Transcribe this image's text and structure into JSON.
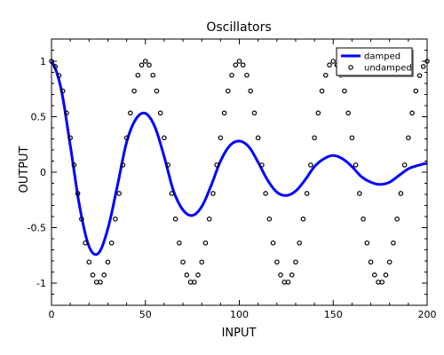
{
  "chart_data": {
    "type": "line",
    "title": "Oscillators",
    "xlabel": "INPUT",
    "ylabel": "OUTPUT",
    "xlim": [
      0,
      200
    ],
    "ylim": [
      -1.2,
      1.2
    ],
    "x_ticks": [
      0,
      50,
      100,
      150,
      200
    ],
    "y_ticks": [
      -1,
      -0.5,
      0,
      0.5,
      1
    ],
    "x_tick_labels": [
      "0",
      "50",
      "100",
      "150",
      "200"
    ],
    "y_tick_labels": [
      "-1",
      "-0.5",
      "0",
      "0.5",
      "1"
    ],
    "grid": false,
    "legend_position": "top-right",
    "series": [
      {
        "name": "damped",
        "style": "line",
        "color": "#0000ff",
        "x": [
          0,
          5,
          10,
          15,
          20,
          25,
          30,
          35,
          40,
          45,
          50,
          55,
          60,
          65,
          70,
          75,
          80,
          85,
          90,
          95,
          100,
          105,
          110,
          115,
          120,
          125,
          130,
          135,
          140,
          145,
          150,
          155,
          160,
          165,
          170,
          175,
          180,
          185,
          190,
          195,
          200
        ],
        "y": [
          1.0,
          0.76,
          0.24,
          -0.31,
          -0.67,
          -0.73,
          -0.51,
          -0.13,
          0.27,
          0.48,
          0.53,
          0.41,
          0.14,
          -0.17,
          -0.34,
          -0.39,
          -0.31,
          -0.12,
          0.1,
          0.24,
          0.28,
          0.23,
          0.09,
          -0.07,
          -0.18,
          -0.21,
          -0.17,
          -0.07,
          0.05,
          0.12,
          0.15,
          0.12,
          0.05,
          -0.04,
          -0.09,
          -0.11,
          -0.09,
          -0.03,
          0.03,
          0.06,
          0.08
        ]
      },
      {
        "name": "undamped",
        "style": "markers",
        "color": "#000000",
        "x": [
          0,
          5,
          10,
          15,
          20,
          25,
          30,
          35,
          40,
          45,
          50,
          55,
          60,
          65,
          70,
          75,
          80,
          85,
          90,
          95,
          100,
          105,
          110,
          115,
          120,
          125,
          130,
          135,
          140,
          145,
          150,
          155,
          160,
          165,
          170,
          175,
          180,
          185,
          190,
          195,
          200
        ],
        "y": [
          1.0,
          0.81,
          0.31,
          -0.31,
          -0.81,
          -1.0,
          -0.81,
          -0.31,
          0.31,
          0.81,
          1.0,
          0.81,
          0.31,
          -0.31,
          -0.81,
          -1.0,
          -0.81,
          -0.31,
          0.31,
          0.81,
          1.0,
          0.81,
          0.31,
          -0.31,
          -0.81,
          -1.0,
          -0.81,
          -0.31,
          0.31,
          0.81,
          1.0,
          0.81,
          0.31,
          -0.31,
          -0.81,
          -1.0,
          -0.81,
          -0.31,
          0.31,
          0.81,
          1.0
        ]
      }
    ]
  }
}
